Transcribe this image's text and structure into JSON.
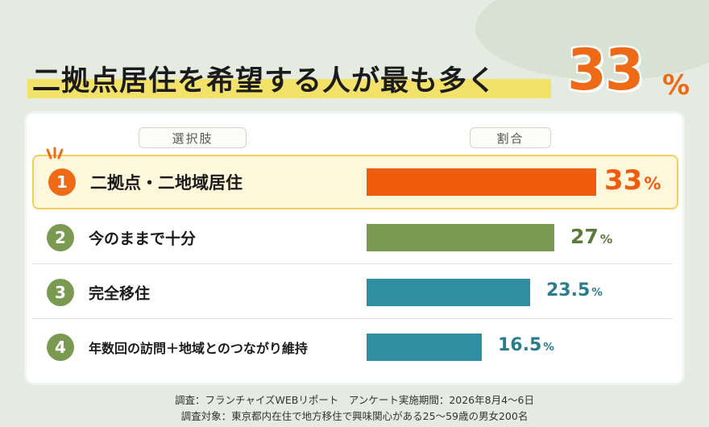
{
  "headline": {
    "text": "二拠点居住を希望する人が最も多く",
    "value": "33",
    "unit": "%"
  },
  "table": {
    "col_choice": "選択肢",
    "col_ratio": "割合"
  },
  "chart_data": {
    "type": "bar",
    "orientation": "horizontal",
    "title": "二拠点居住を希望する人が最も多く33%",
    "categories": [
      "二拠点・二地域居住",
      "今のままで十分",
      "完全移住",
      "年数回の訪問＋地域とのつながり維持"
    ],
    "ranks": [
      "1",
      "2",
      "3",
      "4"
    ],
    "values": [
      33,
      27,
      23.5,
      16.5
    ],
    "value_labels": [
      "33",
      "27",
      "23.5",
      "16.5"
    ],
    "unit": "%",
    "colors": [
      "#ef5c0d",
      "#7a9a52",
      "#2f8fa1",
      "#2f8fa1"
    ],
    "label_colors": [
      "#ef5c0d",
      "#5b7a3d",
      "#2b7d8e",
      "#2b7d8e"
    ],
    "rank_colors": [
      "#ef6a17",
      "#7a9a52",
      "#7a9a52",
      "#7a9a52"
    ],
    "highlight_index": 0
  },
  "footnotes": {
    "line1": "調査：フランチャイズWEBリポート　アンケート実施期間：2026年8月4〜6日",
    "line2": "調査対象：東京都内在住で地方移住で興味関心がある25〜59歳の男女200名"
  }
}
